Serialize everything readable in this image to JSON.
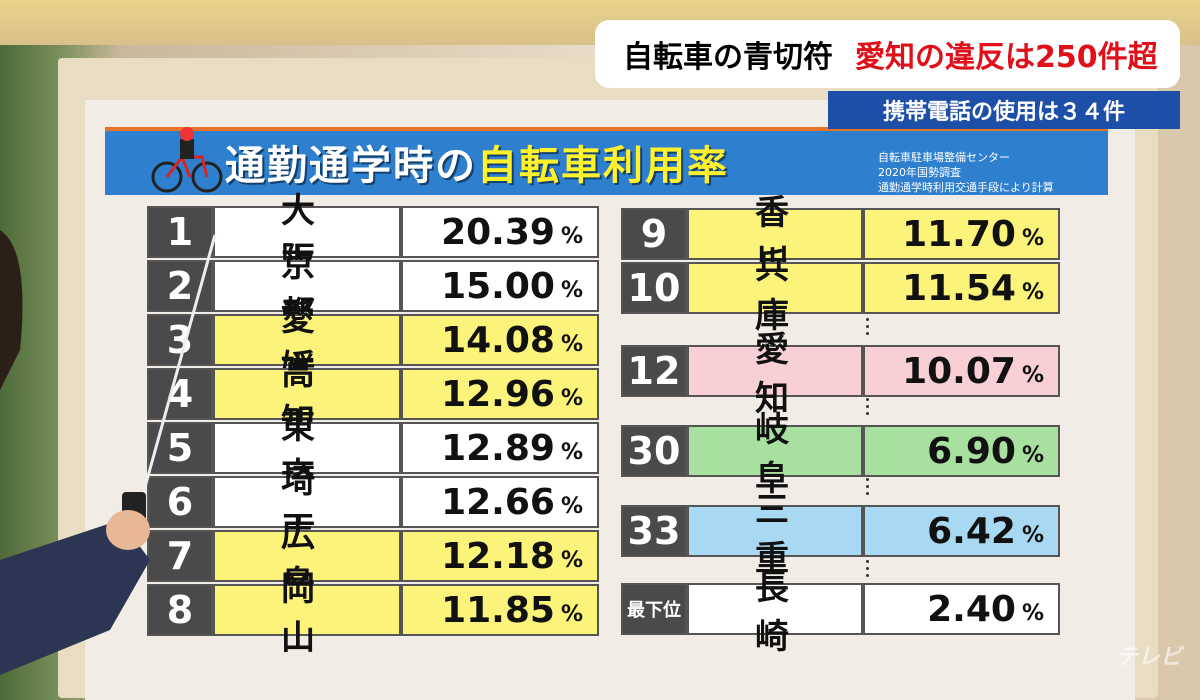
{
  "header": {
    "caption": "自転車の青切符",
    "headline": "愛知の違反は250件超",
    "subcaption": "携帯電話の使用は３４件"
  },
  "board": {
    "title_part1": "通勤通学時の",
    "title_part2": "自転車利用率",
    "source": [
      "自転車駐車場整備センター",
      "2020年国勢調査",
      "通勤通学時利用交通手段により計算"
    ],
    "unit": "%",
    "table_left": [
      {
        "rank": "1",
        "prefecture": "大阪",
        "rate": "20.39",
        "color": "#ffffff"
      },
      {
        "rank": "2",
        "prefecture": "京都",
        "rate": "15.00",
        "color": "#ffffff"
      },
      {
        "rank": "3",
        "prefecture": "愛媛",
        "rate": "14.08",
        "color": "#fbf37a"
      },
      {
        "rank": "4",
        "prefecture": "高知",
        "rate": "12.96",
        "color": "#fbf37a"
      },
      {
        "rank": "5",
        "prefecture": "東京",
        "rate": "12.89",
        "color": "#ffffff"
      },
      {
        "rank": "6",
        "prefecture": "埼玉",
        "rate": "12.66",
        "color": "#ffffff"
      },
      {
        "rank": "7",
        "prefecture": "広島",
        "rate": "12.18",
        "color": "#fbf37a"
      },
      {
        "rank": "8",
        "prefecture": "岡山",
        "rate": "11.85",
        "color": "#fbf37a"
      }
    ],
    "table_right": [
      {
        "rank": "9",
        "prefecture": "香川",
        "rate": "11.70",
        "color": "#fbf37a"
      },
      {
        "rank": "10",
        "prefecture": "兵庫",
        "rate": "11.54",
        "color": "#fbf37a"
      },
      {
        "rank": "12",
        "prefecture": "愛知",
        "rate": "10.07",
        "color": "#f9cfd6"
      },
      {
        "rank": "30",
        "prefecture": "岐阜",
        "rate": "6.90",
        "color": "#a8e0a0"
      },
      {
        "rank": "33",
        "prefecture": "三重",
        "rate": "6.42",
        "color": "#a9d8f2"
      },
      {
        "rank": "最下位",
        "prefecture": "長崎",
        "rate": "2.40",
        "color": "#ffffff"
      }
    ]
  },
  "watermark": "テレビ"
}
